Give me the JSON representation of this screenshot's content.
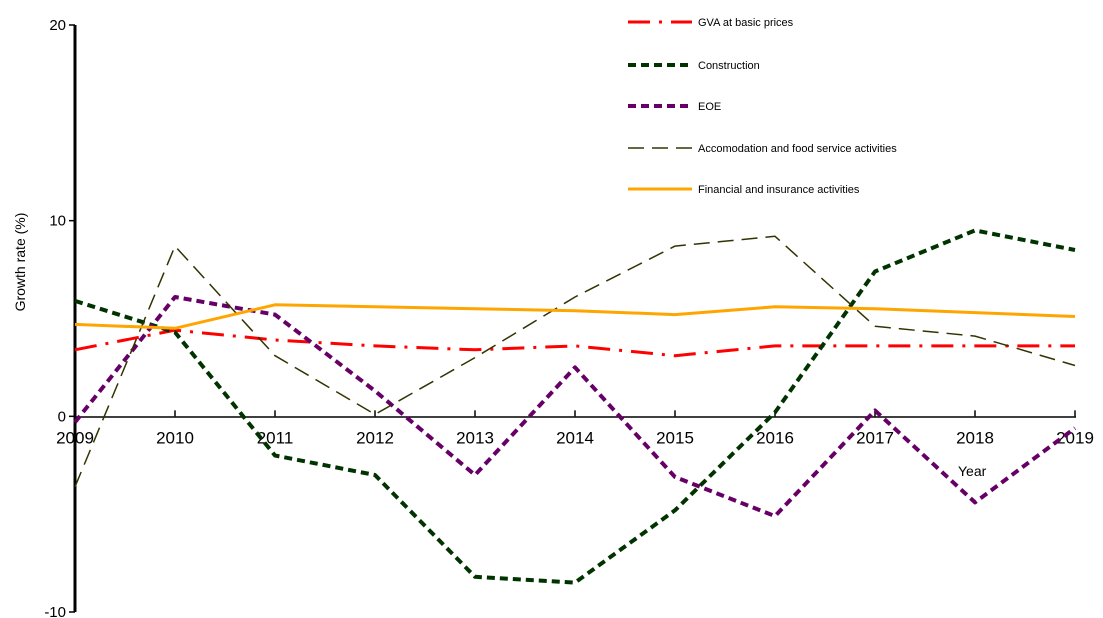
{
  "chart_data": {
    "type": "line",
    "xlabel": "Year",
    "ylabel": "Growth rate (%)",
    "ylim": [
      -10,
      20
    ],
    "yticks": [
      -10,
      0,
      10,
      20
    ],
    "x": [
      "2009",
      "2010",
      "2011",
      "2012",
      "2013",
      "2014",
      "2015",
      "2016",
      "2017",
      "2018",
      "2019"
    ],
    "grid": false,
    "legend_position": "top-right",
    "series": [
      {
        "name": "GVA at basic prices",
        "color": "#ff0000",
        "dash": "dashdot",
        "width": 3,
        "values": [
          3.4,
          4.4,
          3.9,
          3.6,
          3.4,
          3.6,
          3.1,
          3.6,
          3.6,
          3.6,
          3.6
        ]
      },
      {
        "name": "Construction",
        "color": "#003300",
        "dash": "dash-short",
        "width": 4,
        "values": [
          5.9,
          4.3,
          -2.0,
          -3.0,
          -8.2,
          -8.5,
          -4.8,
          0.2,
          7.4,
          9.5,
          8.5
        ]
      },
      {
        "name": "EOE",
        "color": "#660066",
        "dash": "dash-short",
        "width": 4,
        "values": [
          -0.3,
          6.1,
          5.2,
          1.3,
          -3.0,
          2.5,
          -3.1,
          -5.1,
          0.3,
          -4.4,
          -0.6
        ]
      },
      {
        "name": "Accomodation and food service activities",
        "color": "#333300",
        "dash": "dash-long",
        "width": 1.5,
        "values": [
          -3.6,
          8.7,
          3.1,
          0.1,
          3.0,
          6.1,
          8.7,
          9.2,
          4.6,
          4.1,
          2.6
        ]
      },
      {
        "name": "Financial and insurance activities",
        "color": "#ffa500",
        "dash": "solid",
        "width": 3,
        "values": [
          4.7,
          4.5,
          5.7,
          5.6,
          5.5,
          5.4,
          5.2,
          5.6,
          5.5,
          5.3,
          5.1
        ]
      }
    ]
  }
}
